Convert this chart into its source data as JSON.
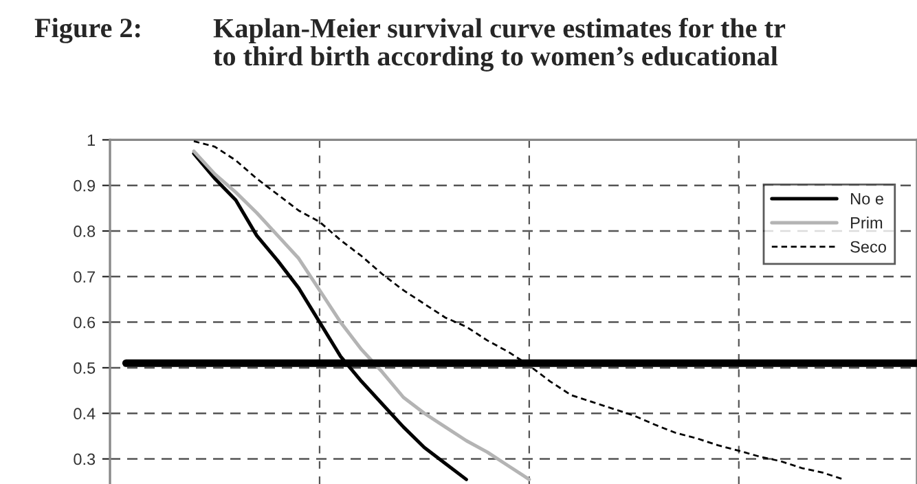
{
  "chart_data": {
    "type": "line",
    "title": "Kaplan-Meier survival curve estimates for the tr\nto third birth according to women’s educational",
    "annotations": [
      "Figure 2:"
    ],
    "categories": [
      null,
      null,
      null,
      null,
      null,
      null,
      null,
      null,
      null,
      null,
      null,
      null,
      null,
      null,
      null,
      null,
      null,
      null,
      null,
      null,
      null,
      null,
      null,
      null,
      null,
      null,
      null,
      null,
      null,
      null,
      null,
      null,
      null,
      null,
      null,
      null,
      null,
      null,
      null
    ],
    "series": [
      {
        "name": "No e",
        "color": "#000000",
        "line_style": "solid",
        "values": [
          null,
          null,
          null,
          null,
          0.97,
          0.915,
          0.868,
          0.79,
          0.735,
          0.675,
          0.6,
          0.525,
          0.47,
          0.42,
          0.37,
          0.325,
          0.29,
          0.255,
          null,
          null,
          null,
          null,
          null,
          null,
          null,
          null,
          null,
          null,
          null,
          null,
          null,
          null,
          null,
          null,
          null,
          null,
          null,
          null,
          null
        ]
      },
      {
        "name": "Prim",
        "color": "#b4b4b4",
        "line_style": "solid",
        "values": [
          null,
          null,
          null,
          null,
          0.975,
          0.925,
          0.885,
          0.84,
          0.79,
          0.74,
          0.67,
          0.6,
          0.54,
          0.49,
          0.435,
          0.4,
          0.37,
          0.34,
          0.315,
          0.285,
          0.255,
          null,
          null,
          null,
          null,
          null,
          null,
          null,
          null,
          null,
          null,
          null,
          null,
          null,
          null,
          null,
          null,
          null,
          null
        ]
      },
      {
        "name": "Seco",
        "color": "#000000",
        "line_style": "dashed",
        "values": [
          null,
          null,
          null,
          null,
          0.997,
          0.985,
          0.955,
          0.915,
          0.88,
          0.845,
          0.82,
          0.78,
          0.745,
          0.705,
          0.67,
          0.64,
          0.61,
          0.59,
          0.56,
          0.535,
          0.505,
          0.47,
          0.44,
          0.425,
          0.41,
          0.395,
          0.375,
          0.357,
          0.345,
          0.33,
          0.318,
          0.305,
          0.295,
          0.28,
          0.27,
          0.255,
          null,
          null,
          null
        ]
      }
    ],
    "ylim": [
      0.245,
      1
    ],
    "yticks": [
      0.3,
      0.4,
      0.5,
      0.6,
      0.7,
      0.8,
      0.9,
      1
    ],
    "ref_lines": [
      {
        "axis": "y",
        "value": 0.51,
        "color": "#000000"
      }
    ],
    "grid": true,
    "legend": "top right",
    "tick_labels": "y"
  }
}
